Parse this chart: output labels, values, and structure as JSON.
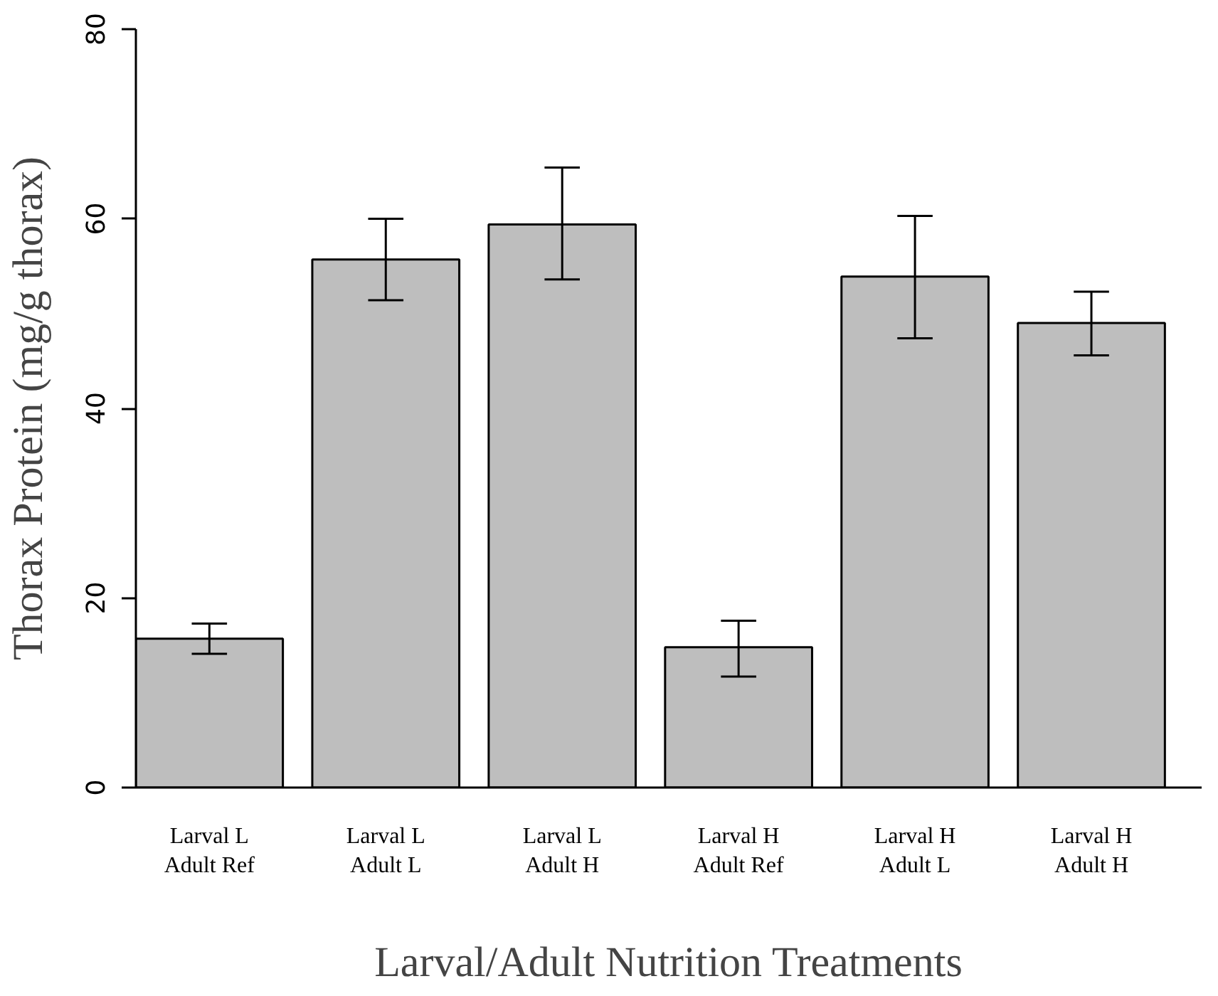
{
  "chart_data": {
    "type": "bar",
    "xlabel": "Larval/Adult Nutrition Treatments",
    "ylabel": "Thorax Protein (mg/g thorax)",
    "categories": [
      "Larval L\nAdult Ref",
      "Larval L\nAdult L",
      "Larval L\nAdult H",
      "Larval H\nAdult Ref",
      "Larval H\nAdult L",
      "Larval H\nAdult H"
    ],
    "values": [
      15.7,
      55.7,
      59.4,
      14.8,
      53.9,
      49.0
    ],
    "errors": [
      [
        14.1,
        17.3
      ],
      [
        51.4,
        60.0
      ],
      [
        53.6,
        65.4
      ],
      [
        11.7,
        17.6
      ],
      [
        47.4,
        60.3
      ],
      [
        45.6,
        52.3
      ]
    ],
    "color": "#bebebe",
    "ylim": [
      0,
      80
    ],
    "yticks": [
      0,
      20,
      40,
      60,
      80
    ],
    "grid": false
  }
}
